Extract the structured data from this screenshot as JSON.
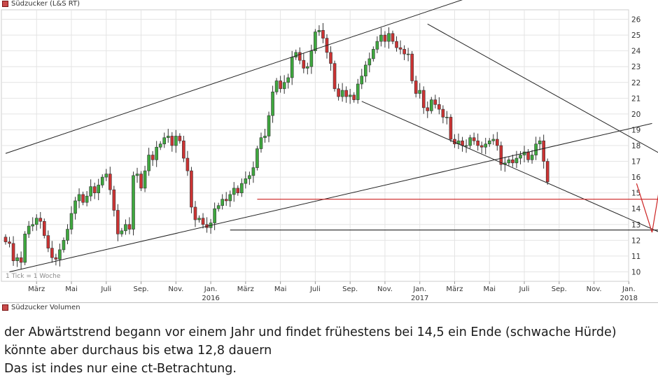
{
  "title": "Südzucker (L&S RT)",
  "volume_title": "Südzucker Volumen",
  "tick_note": "1 Tick = 1 Woche",
  "colors": {
    "up": "#3ea83e",
    "down": "#cc3333",
    "trend": "#222222",
    "support": "#cc2222",
    "legend": "#c94a4a"
  },
  "comment_lines": [
    "der Abwärtstrend begann vor einem Jahr und findet frühestens bei 14,5 ein Ende (schwache Hürde)",
    "könnte aber durchaus bis etwa 12,8 dauern",
    "Das ist indes nur eine ct-Betrachtung."
  ],
  "chart_data": {
    "type": "candlestick",
    "title": "Südzucker (L&S RT)",
    "interval": "weekly",
    "ylim": [
      9.4,
      26.6
    ],
    "y_ticks": [
      10,
      11,
      12,
      13,
      14,
      15,
      16,
      17,
      18,
      19,
      20,
      21,
      22,
      23,
      24,
      25,
      26
    ],
    "y_axis_position": "right",
    "grid": true,
    "x_ticks": [
      {
        "i": 8,
        "label": "März"
      },
      {
        "i": 17,
        "label": "Mai"
      },
      {
        "i": 26,
        "label": "Juli"
      },
      {
        "i": 35,
        "label": "Sep."
      },
      {
        "i": 44,
        "label": "Nov."
      },
      {
        "i": 53,
        "label": "Jan.",
        "year": "2016"
      },
      {
        "i": 62,
        "label": "März"
      },
      {
        "i": 71,
        "label": "Mai"
      },
      {
        "i": 80,
        "label": "Juli"
      },
      {
        "i": 89,
        "label": "Sep."
      },
      {
        "i": 98,
        "label": "Nov."
      },
      {
        "i": 107,
        "label": "Jan.",
        "year": "2017"
      },
      {
        "i": 116,
        "label": "März"
      },
      {
        "i": 125,
        "label": "Mai"
      },
      {
        "i": 134,
        "label": "Juli"
      },
      {
        "i": 143,
        "label": "Sep."
      },
      {
        "i": 152,
        "label": "Nov."
      },
      {
        "i": 161,
        "label": "Jan.",
        "year": "2018"
      }
    ],
    "closes": [
      11.9,
      11.8,
      10.7,
      10.9,
      10.6,
      12.4,
      12.9,
      13.0,
      13.4,
      13.2,
      12.3,
      11.5,
      10.9,
      10.8,
      11.4,
      12.0,
      12.7,
      13.7,
      14.5,
      14.9,
      14.4,
      14.8,
      15.4,
      15.0,
      15.5,
      16.0,
      16.2,
      15.2,
      13.9,
      12.4,
      12.6,
      13.0,
      12.7,
      16.1,
      16.2,
      15.3,
      16.4,
      17.4,
      17.1,
      17.9,
      18.1,
      18.5,
      18.6,
      18.0,
      18.6,
      18.3,
      17.2,
      16.4,
      14.1,
      13.3,
      13.4,
      13.0,
      12.8,
      13.1,
      14.0,
      14.2,
      14.6,
      14.5,
      14.9,
      15.3,
      15.0,
      15.6,
      15.9,
      16.1,
      16.6,
      17.8,
      18.5,
      18.6,
      19.9,
      21.4,
      22.1,
      21.6,
      22.0,
      22.3,
      23.6,
      23.9,
      23.4,
      22.9,
      23.0,
      24.0,
      25.2,
      25.3,
      24.8,
      23.9,
      23.2,
      21.6,
      21.1,
      21.5,
      21.1,
      21.2,
      20.9,
      21.9,
      22.4,
      23.1,
      23.5,
      24.1,
      24.6,
      25.0,
      24.6,
      25.1,
      24.6,
      24.2,
      24.1,
      23.8,
      23.8,
      22.1,
      21.3,
      21.5,
      20.4,
      20.2,
      20.9,
      20.6,
      20.3,
      19.8,
      19.8,
      18.4,
      18.1,
      18.3,
      18.0,
      18.0,
      18.5,
      18.3,
      18.0,
      17.9,
      18.1,
      18.3,
      18.4,
      18.0,
      16.8,
      16.9,
      17.1,
      16.9,
      17.2,
      17.4,
      17.6,
      17.1,
      17.4,
      18.1,
      18.3,
      17.0,
      15.7
    ],
    "annotations": [
      {
        "type": "trendline",
        "name": "uptrend-upper",
        "from": {
          "i": 0,
          "y": 17.5
        },
        "to": {
          "i": 143,
          "y": 29.3
        }
      },
      {
        "type": "trendline",
        "name": "uptrend-lower",
        "from": {
          "i": 1,
          "y": 10.0
        },
        "to": {
          "i": 167,
          "y": 19.4
        }
      },
      {
        "type": "trendline",
        "name": "downtrend-upper",
        "from": {
          "i": 109,
          "y": 25.7
        },
        "to": {
          "i": 169,
          "y": 17.5
        }
      },
      {
        "type": "trendline",
        "name": "downtrend-lower",
        "from": {
          "i": 92,
          "y": 20.8
        },
        "to": {
          "i": 169,
          "y": 12.5
        }
      },
      {
        "type": "hline",
        "name": "support-12-8",
        "y": 12.65,
        "from_i": 58,
        "to_i": 169,
        "color": "#222222"
      },
      {
        "type": "hline",
        "name": "support-14-5",
        "y": 14.6,
        "from_i": 65,
        "to_i": 169,
        "color": "#cc2222"
      },
      {
        "type": "projection",
        "name": "projected-path",
        "points": [
          {
            "i": 163,
            "y": 15.6
          },
          {
            "i": 167,
            "y": 12.5
          },
          {
            "i": 170,
            "y": 16.9
          }
        ],
        "color": "#cc2222"
      }
    ]
  }
}
